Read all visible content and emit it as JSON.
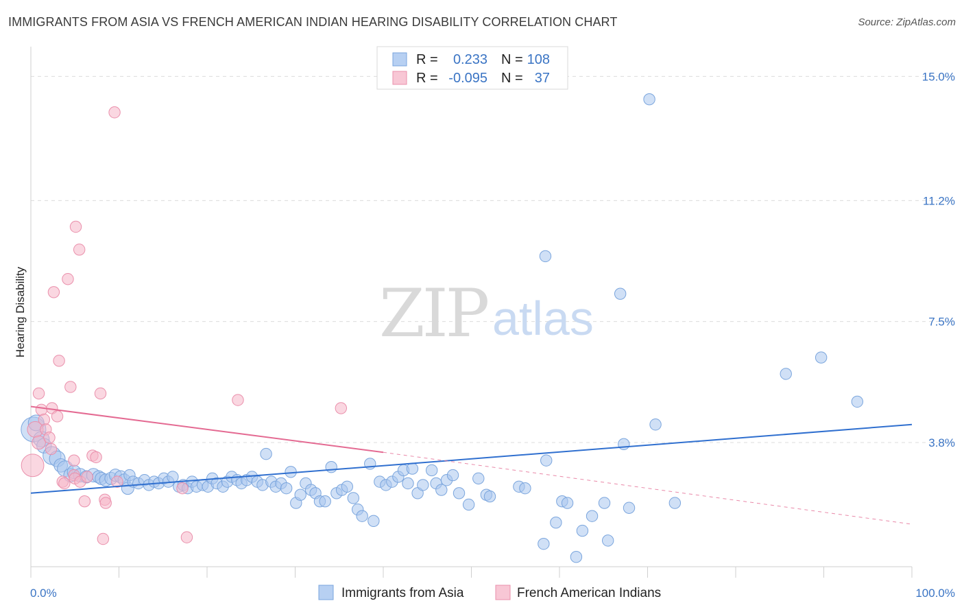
{
  "title": "IMMIGRANTS FROM ASIA VS FRENCH AMERICAN INDIAN HEARING DISABILITY CORRELATION CHART",
  "source": "Source: ZipAtlas.com",
  "watermark": {
    "zip": "ZIP",
    "atlas": "atlas"
  },
  "legend_top": [
    {
      "r_label": "R =",
      "r_value": "0.233",
      "n_label": "N =",
      "n_value": "108",
      "color": "#a9c6ee"
    },
    {
      "r_label": "R =",
      "r_value": "-0.095",
      "n_label": "N =",
      "n_value": "37",
      "color": "#f6b6c8"
    }
  ],
  "chart_data": {
    "type": "scatter",
    "title": "IMMIGRANTS FROM ASIA VS FRENCH AMERICAN INDIAN HEARING DISABILITY CORRELATION CHART",
    "xlabel": "",
    "ylabel": "Hearing Disability",
    "xlim": [
      0,
      100
    ],
    "ylim": [
      0,
      15.7
    ],
    "x_ticks_labeled": [
      "0.0%",
      "100.0%"
    ],
    "y_ticks": [
      3.8,
      7.5,
      11.2,
      15.0
    ],
    "y_tick_labels": [
      "3.8%",
      "7.5%",
      "11.2%",
      "15.0%"
    ],
    "grid": "horizontal dashed",
    "legend_position": "top-center and bottom",
    "series": [
      {
        "name": "Immigrants from Asia",
        "color": "#a9c6ee",
        "edge": "#7aa5dd",
        "trend": {
          "x": [
            0,
            100
          ],
          "y": [
            2.25,
            4.35
          ],
          "color": "#2f6fcf",
          "style": "solid"
        },
        "points": [
          [
            0.3,
            4.2,
            22
          ],
          [
            0.6,
            4.4,
            14
          ],
          [
            1.2,
            3.9,
            14
          ],
          [
            1.5,
            3.7,
            13
          ],
          [
            2.4,
            3.4,
            16
          ],
          [
            3.0,
            3.3,
            14
          ],
          [
            3.4,
            3.1,
            12
          ],
          [
            3.9,
            3.0,
            14
          ],
          [
            4.5,
            2.8,
            12
          ],
          [
            4.9,
            2.9,
            12
          ],
          [
            5.6,
            2.8,
            12
          ],
          [
            6.3,
            2.75,
            11
          ],
          [
            7.1,
            2.8,
            12
          ],
          [
            7.7,
            2.75,
            11
          ],
          [
            8.0,
            2.7,
            11
          ],
          [
            8.5,
            2.65,
            11
          ],
          [
            9.1,
            2.7,
            11
          ],
          [
            9.6,
            2.8,
            11
          ],
          [
            10.2,
            2.75,
            11
          ],
          [
            10.6,
            2.65,
            11
          ],
          [
            11.2,
            2.8,
            10
          ],
          [
            11.0,
            2.4,
            11
          ],
          [
            11.6,
            2.6,
            10
          ],
          [
            12.2,
            2.55,
            10
          ],
          [
            12.9,
            2.65,
            10
          ],
          [
            13.4,
            2.5,
            10
          ],
          [
            14.0,
            2.6,
            10
          ],
          [
            14.5,
            2.55,
            10
          ],
          [
            15.1,
            2.7,
            10
          ],
          [
            15.6,
            2.6,
            10
          ],
          [
            16.1,
            2.75,
            10
          ],
          [
            16.8,
            2.45,
            10
          ],
          [
            17.3,
            2.5,
            10
          ],
          [
            17.8,
            2.4,
            10
          ],
          [
            18.3,
            2.6,
            10
          ],
          [
            18.8,
            2.45,
            10
          ],
          [
            19.5,
            2.5,
            10
          ],
          [
            20.1,
            2.45,
            10
          ],
          [
            20.6,
            2.7,
            10
          ],
          [
            21.1,
            2.55,
            10
          ],
          [
            21.8,
            2.45,
            10
          ],
          [
            22.3,
            2.6,
            10
          ],
          [
            22.8,
            2.75,
            10
          ],
          [
            23.4,
            2.65,
            10
          ],
          [
            23.9,
            2.55,
            10
          ],
          [
            24.5,
            2.65,
            10
          ],
          [
            25.1,
            2.75,
            10
          ],
          [
            25.7,
            2.6,
            10
          ],
          [
            26.3,
            2.5,
            10
          ],
          [
            26.7,
            3.45,
            10
          ],
          [
            27.3,
            2.6,
            10
          ],
          [
            27.8,
            2.45,
            10
          ],
          [
            28.4,
            2.55,
            10
          ],
          [
            29.0,
            2.4,
            10
          ],
          [
            29.5,
            2.9,
            10
          ],
          [
            30.1,
            1.95,
            10
          ],
          [
            30.6,
            2.2,
            10
          ],
          [
            31.2,
            2.55,
            10
          ],
          [
            31.8,
            2.35,
            10
          ],
          [
            32.3,
            2.25,
            10
          ],
          [
            32.8,
            2.0,
            10
          ],
          [
            33.4,
            2.0,
            10
          ],
          [
            34.1,
            3.05,
            10
          ],
          [
            34.7,
            2.25,
            10
          ],
          [
            35.3,
            2.35,
            10
          ],
          [
            35.9,
            2.45,
            10
          ],
          [
            36.6,
            2.1,
            10
          ],
          [
            37.1,
            1.75,
            10
          ],
          [
            37.6,
            1.55,
            10
          ],
          [
            38.5,
            3.15,
            10
          ],
          [
            38.9,
            1.4,
            10
          ],
          [
            39.6,
            2.6,
            10
          ],
          [
            40.3,
            2.5,
            10
          ],
          [
            41.0,
            2.6,
            10
          ],
          [
            41.7,
            2.75,
            10
          ],
          [
            42.3,
            2.95,
            10
          ],
          [
            42.8,
            2.55,
            10
          ],
          [
            43.3,
            3.0,
            10
          ],
          [
            43.9,
            2.25,
            10
          ],
          [
            44.5,
            2.5,
            10
          ],
          [
            45.5,
            2.95,
            10
          ],
          [
            46.0,
            2.55,
            10
          ],
          [
            46.6,
            2.35,
            10
          ],
          [
            47.2,
            2.65,
            10
          ],
          [
            47.9,
            2.8,
            10
          ],
          [
            48.6,
            2.25,
            10
          ],
          [
            49.7,
            1.9,
            10
          ],
          [
            50.8,
            2.7,
            10
          ],
          [
            51.7,
            2.2,
            10
          ],
          [
            52.1,
            2.15,
            10
          ],
          [
            55.4,
            2.45,
            10
          ],
          [
            58.2,
            0.7,
            10
          ],
          [
            58.5,
            3.25,
            10
          ],
          [
            59.6,
            1.35,
            10
          ],
          [
            60.3,
            2.0,
            10
          ],
          [
            60.9,
            1.95,
            10
          ],
          [
            61.9,
            0.3,
            10
          ],
          [
            63.7,
            1.55,
            10
          ],
          [
            65.1,
            1.95,
            10
          ],
          [
            65.5,
            0.8,
            10
          ],
          [
            67.3,
            3.75,
            10
          ],
          [
            67.9,
            1.8,
            10
          ],
          [
            70.9,
            4.35,
            10
          ],
          [
            73.1,
            1.95,
            10
          ],
          [
            62.6,
            1.1,
            10
          ],
          [
            56.1,
            2.4,
            10
          ],
          [
            58.4,
            9.5,
            10
          ],
          [
            66.9,
            8.35,
            10
          ],
          [
            89.7,
            6.4,
            10
          ],
          [
            85.7,
            5.9,
            10
          ],
          [
            93.8,
            5.05,
            10
          ],
          [
            70.2,
            14.3,
            10
          ]
        ]
      },
      {
        "name": "French American Indians",
        "color": "#f6b6c8",
        "edge": "#ea8fab",
        "trend": {
          "x": [
            0,
            40
          ],
          "y": [
            4.9,
            3.5
          ],
          "x_dash": [
            40,
            100
          ],
          "y_dash_end": 1.3,
          "color": "#e46a92",
          "style": "solid then dashed"
        },
        "points": [
          [
            0.2,
            3.1,
            20
          ],
          [
            0.5,
            4.2,
            14
          ],
          [
            0.9,
            3.8,
            12
          ],
          [
            0.9,
            5.3,
            10
          ],
          [
            1.2,
            4.8,
            10
          ],
          [
            1.5,
            4.5,
            10
          ],
          [
            1.7,
            4.2,
            10
          ],
          [
            2.1,
            3.95,
            10
          ],
          [
            2.3,
            3.6,
            10
          ],
          [
            2.4,
            4.85,
            10
          ],
          [
            2.6,
            8.4,
            10
          ],
          [
            3.0,
            4.6,
            10
          ],
          [
            3.2,
            6.3,
            10
          ],
          [
            3.6,
            2.6,
            10
          ],
          [
            3.8,
            2.55,
            10
          ],
          [
            4.2,
            8.8,
            10
          ],
          [
            4.5,
            5.5,
            10
          ],
          [
            4.9,
            3.25,
            10
          ],
          [
            4.9,
            2.8,
            10
          ],
          [
            5.0,
            2.7,
            10
          ],
          [
            5.1,
            10.4,
            10
          ],
          [
            5.5,
            9.7,
            10
          ],
          [
            5.6,
            2.6,
            10
          ],
          [
            6.1,
            2.0,
            10
          ],
          [
            6.4,
            2.75,
            10
          ],
          [
            7.0,
            3.4,
            10
          ],
          [
            7.4,
            3.35,
            10
          ],
          [
            7.9,
            5.3,
            10
          ],
          [
            8.2,
            0.85,
            10
          ],
          [
            8.4,
            2.05,
            10
          ],
          [
            8.5,
            1.95,
            10
          ],
          [
            9.5,
            13.9,
            10
          ],
          [
            9.8,
            2.6,
            10
          ],
          [
            17.7,
            0.9,
            10
          ],
          [
            17.2,
            2.4,
            10
          ],
          [
            23.5,
            5.1,
            10
          ],
          [
            35.2,
            4.85,
            10
          ]
        ]
      }
    ]
  }
}
